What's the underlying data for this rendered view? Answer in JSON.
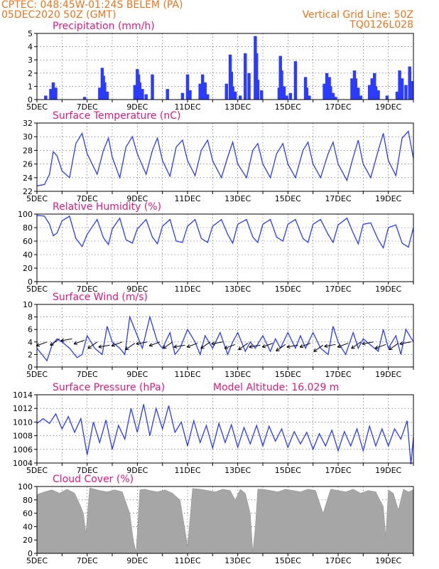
{
  "header": {
    "station_line": "CPTEC:   048:45W-01:24S   BELEM (PA)",
    "date_line": "05DEC2020 50Z (GMT)",
    "grid_line": "Vertical Grid Line: 50Z",
    "run_code": "TQ0126L028",
    "text_color": "#e8761e",
    "title_color": "#e0197d"
  },
  "x_tick_labels": [
    "5DEC",
    "7DEC",
    "9DEC",
    "11DEC",
    "13DEC",
    "15DEC",
    "17DEC",
    "19DEC"
  ],
  "x_tick_days": [
    5,
    7,
    9,
    11,
    13,
    15,
    17,
    19
  ],
  "chart_data": [
    {
      "type": "bar",
      "title": "Precipitation (mm/h)",
      "ylim": [
        0,
        5
      ],
      "yticks": [
        "0",
        "1",
        "2",
        "3",
        "4",
        "5"
      ],
      "color": "#2b3bff",
      "x_range_days": [
        5,
        20
      ],
      "series": [
        {
          "x": [
            5.35,
            5.55,
            5.65,
            5.75,
            6.9,
            7.5,
            7.6,
            7.65,
            7.7,
            7.8,
            8.9,
            9.0,
            9.05,
            9.1,
            9.2,
            9.35,
            9.6,
            10.2,
            10.8,
            11.0,
            11.1,
            11.5,
            11.6,
            11.7,
            11.8,
            12.55,
            12.7,
            12.75,
            12.8,
            12.9,
            13.1,
            13.3,
            13.45,
            13.7,
            13.75,
            13.8,
            13.95,
            14.65,
            14.7,
            14.75,
            14.85,
            14.95,
            15.1,
            15.3,
            15.7,
            15.75,
            15.85,
            16.45,
            16.55,
            16.65,
            16.7,
            16.8,
            16.9,
            17.55,
            17.65,
            17.7,
            17.8,
            17.9,
            18.25,
            18.35,
            18.45,
            18.5,
            18.6,
            18.95,
            19.35,
            19.45,
            19.55,
            19.7,
            19.85,
            19.95
          ],
          "values": [
            0.3,
            0.8,
            1.3,
            0.9,
            0.2,
            0.9,
            2.4,
            1.8,
            1.3,
            0.6,
            1.1,
            2.3,
            1.9,
            1.3,
            0.8,
            0.4,
            1.9,
            0.8,
            0.5,
            1.9,
            0.7,
            1.2,
            1.9,
            1.3,
            0.4,
            1.2,
            3.4,
            2.1,
            1.0,
            0.6,
            0.3,
            3.5,
            2.0,
            4.8,
            3.5,
            1.5,
            0.7,
            0.9,
            3.3,
            2.2,
            1.0,
            0.3,
            0.5,
            2.9,
            1.7,
            0.9,
            0.3,
            1.2,
            2.0,
            1.7,
            1.0,
            0.5,
            0.2,
            1.6,
            2.2,
            1.6,
            0.9,
            0.3,
            1.1,
            1.6,
            2.0,
            1.0,
            0.7,
            0.3,
            0.6,
            2.2,
            1.6,
            1.1,
            2.5,
            1.4
          ]
        }
      ]
    },
    {
      "type": "line",
      "title": "Surface Temperature (nC)",
      "ylim": [
        22,
        32
      ],
      "yticks": [
        "22",
        "24",
        "26",
        "28",
        "30",
        "32"
      ],
      "color": "#2b3bff",
      "series": [
        {
          "x": [
            5.0,
            5.3,
            5.5,
            5.65,
            5.8,
            6.0,
            6.3,
            6.55,
            6.8,
            7.0,
            7.4,
            7.65,
            7.85,
            8.0,
            8.3,
            8.55,
            8.8,
            9.0,
            9.35,
            9.6,
            9.8,
            10.0,
            10.3,
            10.55,
            10.8,
            11.0,
            11.3,
            11.55,
            11.8,
            12.0,
            12.35,
            12.6,
            12.8,
            13.0,
            13.35,
            13.6,
            13.8,
            14.0,
            14.3,
            14.55,
            14.8,
            15.0,
            15.3,
            15.6,
            15.8,
            16.0,
            16.3,
            16.6,
            16.8,
            17.0,
            17.35,
            17.6,
            17.8,
            18.0,
            18.3,
            18.6,
            18.8,
            19.0,
            19.3,
            19.55,
            19.8,
            20.0
          ],
          "values": [
            22.8,
            23.0,
            24.5,
            27.8,
            27.2,
            25.0,
            24.0,
            29.0,
            30.5,
            27.5,
            24.5,
            28.0,
            29.8,
            27.0,
            24.0,
            28.5,
            30.0,
            27.5,
            24.5,
            28.0,
            29.8,
            26.5,
            24.2,
            28.5,
            29.5,
            26.5,
            24.3,
            28.0,
            29.5,
            26.5,
            24.0,
            27.0,
            29.2,
            26.0,
            24.0,
            28.0,
            29.0,
            26.0,
            24.0,
            27.5,
            29.0,
            26.0,
            24.0,
            28.0,
            29.2,
            26.0,
            24.0,
            27.5,
            29.2,
            26.0,
            23.6,
            27.0,
            29.5,
            26.0,
            24.0,
            28.0,
            30.5,
            26.5,
            24.3,
            29.8,
            30.8,
            26.8
          ]
        }
      ]
    },
    {
      "type": "line",
      "title": "Relative Humidity (%)",
      "ylim": [
        0,
        100
      ],
      "yticks": [
        "0",
        "20",
        "40",
        "60",
        "80",
        "100"
      ],
      "color": "#2b3bff",
      "series": [
        {
          "x": [
            5.0,
            5.3,
            5.5,
            5.65,
            5.8,
            6.0,
            6.3,
            6.55,
            6.8,
            7.0,
            7.4,
            7.65,
            7.85,
            8.0,
            8.3,
            8.55,
            8.8,
            9.0,
            9.35,
            9.6,
            9.8,
            10.0,
            10.3,
            10.55,
            10.8,
            11.0,
            11.3,
            11.55,
            11.8,
            12.0,
            12.35,
            12.6,
            12.8,
            13.0,
            13.35,
            13.6,
            13.8,
            14.0,
            14.3,
            14.55,
            14.8,
            15.0,
            15.3,
            15.6,
            15.8,
            16.0,
            16.3,
            16.6,
            16.8,
            17.0,
            17.35,
            17.6,
            17.8,
            18.0,
            18.3,
            18.6,
            18.8,
            19.0,
            19.3,
            19.55,
            19.8,
            20.0
          ],
          "values": [
            98,
            97,
            85,
            68,
            72,
            90,
            97,
            64,
            52,
            70,
            92,
            65,
            55,
            78,
            94,
            62,
            57,
            78,
            92,
            66,
            56,
            82,
            92,
            60,
            58,
            82,
            92,
            64,
            58,
            82,
            92,
            70,
            57,
            85,
            92,
            66,
            58,
            85,
            92,
            66,
            60,
            85,
            92,
            64,
            58,
            85,
            92,
            70,
            58,
            84,
            94,
            72,
            56,
            85,
            87,
            62,
            50,
            80,
            84,
            57,
            51,
            80
          ]
        }
      ]
    },
    {
      "type": "line",
      "title": "Surface Wind (m/s)",
      "ylim": [
        0,
        10
      ],
      "yticks": [
        "0",
        "2",
        "4",
        "6",
        "8",
        "10"
      ],
      "color": "#2b3bff",
      "series": [
        {
          "x": [
            5.0,
            5.2,
            5.4,
            5.6,
            5.8,
            6.0,
            6.3,
            6.6,
            6.8,
            7.0,
            7.3,
            7.6,
            7.8,
            8.0,
            8.3,
            8.5,
            8.7,
            9.0,
            9.2,
            9.5,
            9.8,
            10.0,
            10.3,
            10.5,
            10.7,
            11.0,
            11.3,
            11.5,
            11.7,
            12.0,
            12.3,
            12.6,
            12.8,
            13.0,
            13.3,
            13.5,
            13.7,
            14.0,
            14.3,
            14.5,
            14.7,
            15.0,
            15.3,
            15.5,
            15.7,
            16.0,
            16.3,
            16.6,
            16.8,
            17.0,
            17.3,
            17.6,
            17.8,
            18.0,
            18.3,
            18.6,
            18.8,
            19.0,
            19.3,
            19.5,
            19.7,
            20.0
          ],
          "values": [
            3.0,
            2.0,
            1.0,
            3.5,
            4.5,
            4.0,
            3.0,
            1.5,
            2.0,
            5.0,
            3.0,
            2.0,
            6.5,
            4.0,
            3.0,
            2.0,
            8.0,
            5.0,
            3.0,
            8.0,
            4.0,
            3.0,
            5.5,
            2.0,
            3.0,
            6.0,
            4.0,
            2.0,
            5.0,
            3.0,
            5.5,
            2.0,
            4.0,
            5.5,
            2.5,
            4.0,
            3.0,
            5.0,
            2.5,
            4.5,
            3.0,
            5.5,
            3.0,
            5.0,
            3.0,
            5.5,
            3.0,
            2.0,
            6.5,
            4.0,
            2.0,
            5.5,
            3.0,
            4.5,
            3.5,
            2.5,
            6.0,
            3.0,
            5.0,
            2.0,
            6.0,
            4.0
          ]
        }
      ],
      "vector_days": [
        5.4,
        5.9,
        6.4,
        6.9,
        7.4,
        7.9,
        8.4,
        8.9,
        9.4,
        9.9,
        10.4,
        10.9,
        11.4,
        11.9,
        12.4,
        12.9,
        13.4,
        13.9,
        14.4,
        14.9,
        15.4,
        15.9,
        16.4,
        16.9,
        17.4,
        17.9,
        18.4,
        18.9,
        19.4,
        19.9
      ],
      "vector_speed": [
        4.0,
        4.5,
        4.5,
        4.3,
        4.0,
        3.5,
        4.0,
        3.8,
        4.0,
        4.0,
        4.0,
        3.5,
        3.8,
        4.0,
        4.0,
        3.6,
        3.8,
        3.5,
        3.8,
        3.6,
        3.5,
        3.8,
        3.5,
        3.6,
        3.8,
        4.0,
        4.0,
        3.6,
        3.8,
        4.0
      ]
    },
    {
      "type": "line",
      "title": "Surface Pressure (hPa)",
      "annotation": "Model Altitude: 16.029 m",
      "ylim": [
        1004,
        1014
      ],
      "yticks": [
        "1004",
        "1006",
        "1008",
        "1010",
        "1012",
        "1014"
      ],
      "color": "#2b3bff",
      "series": [
        {
          "x": [
            5.0,
            5.25,
            5.5,
            5.75,
            6.0,
            6.25,
            6.5,
            6.75,
            7.0,
            7.25,
            7.5,
            7.75,
            8.0,
            8.25,
            8.5,
            8.75,
            9.0,
            9.25,
            9.5,
            9.75,
            10.0,
            10.25,
            10.5,
            10.75,
            11.0,
            11.25,
            11.5,
            11.75,
            12.0,
            12.25,
            12.5,
            12.75,
            13.0,
            13.25,
            13.5,
            13.75,
            14.0,
            14.25,
            14.5,
            14.75,
            15.0,
            15.25,
            15.5,
            15.75,
            16.0,
            16.25,
            16.5,
            16.75,
            17.0,
            17.25,
            17.5,
            17.75,
            18.0,
            18.25,
            18.5,
            18.75,
            19.0,
            19.25,
            19.5,
            19.75,
            19.9,
            20.0
          ],
          "values": [
            1009.8,
            1010.5,
            1009.8,
            1011.2,
            1009.0,
            1010.8,
            1008.5,
            1010.5,
            1005.2,
            1010.0,
            1007.0,
            1010.3,
            1006.0,
            1009.5,
            1007.5,
            1012.0,
            1008.5,
            1012.6,
            1008.0,
            1012.0,
            1009.0,
            1012.4,
            1008.5,
            1010.0,
            1006.5,
            1010.2,
            1007.0,
            1009.5,
            1006.2,
            1009.8,
            1007.0,
            1009.6,
            1006.3,
            1009.2,
            1006.8,
            1009.5,
            1006.5,
            1009.4,
            1007.2,
            1009.0,
            1006.3,
            1008.6,
            1006.8,
            1008.5,
            1006.0,
            1008.3,
            1006.5,
            1008.8,
            1005.8,
            1008.6,
            1006.5,
            1009.0,
            1005.8,
            1009.4,
            1006.5,
            1009.0,
            1006.5,
            1009.0,
            1007.5,
            1010.2,
            1003.8,
            1007.8
          ]
        }
      ]
    },
    {
      "type": "area",
      "title": "Cloud Cover (%)",
      "ylim": [
        0,
        100
      ],
      "yticks": [
        "0",
        "20",
        "40",
        "60",
        "80",
        "100"
      ],
      "color": "#a6a6a6",
      "series": [
        {
          "x": [
            5.0,
            5.3,
            5.6,
            5.9,
            6.2,
            6.5,
            6.75,
            6.85,
            6.95,
            7.1,
            7.3,
            7.5,
            7.8,
            8.1,
            8.4,
            8.7,
            8.85,
            8.95,
            9.1,
            9.3,
            9.5,
            9.8,
            10.1,
            10.4,
            10.7,
            10.9,
            11.0,
            11.2,
            11.5,
            11.8,
            12.1,
            12.4,
            12.7,
            12.9,
            13.1,
            13.3,
            13.5,
            13.6,
            13.7,
            13.8,
            14.0,
            14.3,
            14.6,
            14.9,
            15.2,
            15.5,
            15.8,
            16.1,
            16.4,
            16.7,
            17.0,
            17.3,
            17.6,
            17.9,
            18.2,
            18.5,
            18.8,
            18.9,
            19.0,
            19.2,
            19.4,
            19.6,
            19.8,
            20.0
          ],
          "values": [
            88,
            92,
            95,
            90,
            96,
            90,
            70,
            60,
            30,
            98,
            96,
            94,
            92,
            95,
            92,
            60,
            18,
            2,
            95,
            96,
            94,
            92,
            95,
            90,
            80,
            35,
            10,
            97,
            96,
            94,
            92,
            96,
            94,
            80,
            96,
            90,
            60,
            2,
            40,
            96,
            96,
            94,
            92,
            96,
            94,
            92,
            96,
            94,
            60,
            96,
            94,
            92,
            96,
            90,
            94,
            92,
            70,
            25,
            95,
            90,
            65,
            96,
            92,
            95
          ]
        }
      ]
    }
  ]
}
